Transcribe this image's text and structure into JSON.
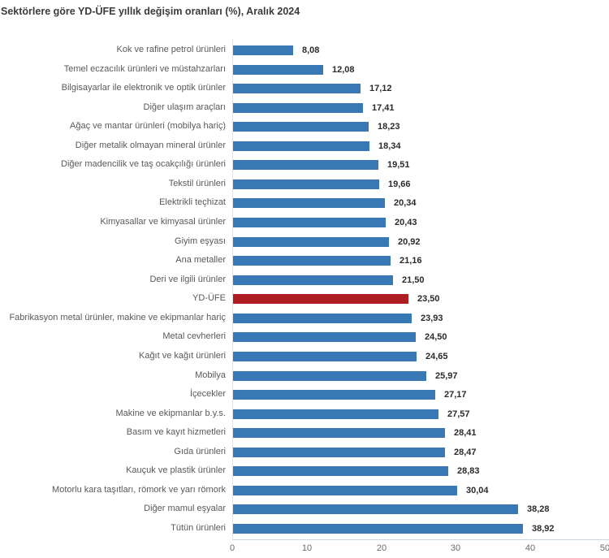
{
  "chart_data": {
    "type": "bar",
    "orientation": "horizontal",
    "title": "Sektörlere göre YD-ÜFE yıllık değişim oranları (%), Aralık 2024",
    "xlabel": "",
    "ylabel": "",
    "xlim": [
      0,
      50
    ],
    "x_ticks": [
      0,
      10,
      20,
      30,
      40,
      50
    ],
    "x_tick_labels": [
      "0",
      "10",
      "20",
      "30",
      "40",
      "50"
    ],
    "grid": false,
    "legend": false,
    "bar_color": "#3878b4",
    "highlight_color": "#ae1c24",
    "highlight_category": "YD-ÜFE",
    "categories": [
      "Kok ve rafine petrol ürünleri",
      "Temel eczacılık ürünleri ve müstahzarları",
      "Bilgisayarlar ile elektronik ve optik ürünler",
      "Diğer ulaşım araçları",
      "Ağaç ve mantar ürünleri (mobilya hariç)",
      "Diğer metalik olmayan mineral ürünler",
      "Diğer madencilik ve taş ocakçılığı ürünleri",
      "Tekstil ürünleri",
      "Elektrikli teçhizat",
      "Kimyasallar ve kimyasal ürünler",
      "Giyim eşyası",
      "Ana metaller",
      "Deri ve ilgili ürünler",
      "YD-ÜFE",
      "Fabrikasyon metal ürünler, makine ve ekipmanlar hariç",
      "Metal cevherleri",
      "Kağıt ve kağıt ürünleri",
      "Mobilya",
      "İçecekler",
      "Makine ve ekipmanlar b.y.s.",
      "Basım ve kayıt hizmetleri",
      "Gıda ürünleri",
      "Kauçuk ve plastik ürünler",
      "Motorlu kara taşıtları, römork ve yarı römork",
      "Diğer mamul eşyalar",
      "Tütün ürünleri"
    ],
    "values": [
      8.08,
      12.08,
      17.12,
      17.41,
      18.23,
      18.34,
      19.51,
      19.66,
      20.34,
      20.43,
      20.92,
      21.16,
      21.5,
      23.5,
      23.93,
      24.5,
      24.65,
      25.97,
      27.17,
      27.57,
      28.41,
      28.47,
      28.83,
      30.04,
      38.28,
      38.92
    ],
    "value_labels": [
      "8,08",
      "12,08",
      "17,12",
      "17,41",
      "18,23",
      "18,34",
      "19,51",
      "19,66",
      "20,34",
      "20,43",
      "20,92",
      "21,16",
      "21,50",
      "23,50",
      "23,93",
      "24,50",
      "24,65",
      "25,97",
      "27,17",
      "27,57",
      "28,41",
      "28,47",
      "28,83",
      "30,04",
      "38,28",
      "38,92"
    ]
  }
}
